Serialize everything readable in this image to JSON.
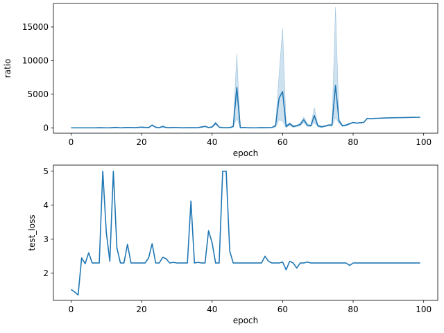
{
  "chart_data": [
    {
      "type": "line",
      "xlabel": "epoch",
      "ylabel": "ratio",
      "xlim": [
        -5,
        104
      ],
      "ylim": [
        -800,
        18500
      ],
      "xticks": [
        0,
        20,
        40,
        60,
        80,
        100
      ],
      "yticks": [
        0,
        5000,
        10000,
        15000
      ],
      "grid": false,
      "series": [
        {
          "color": "#1f77b4",
          "x": [
            0,
            1,
            2,
            3,
            4,
            5,
            6,
            7,
            8,
            9,
            10,
            11,
            12,
            13,
            14,
            15,
            16,
            17,
            18,
            19,
            20,
            21,
            22,
            23,
            24,
            25,
            26,
            27,
            28,
            29,
            30,
            31,
            32,
            33,
            34,
            35,
            36,
            37,
            38,
            39,
            40,
            41,
            42,
            43,
            44,
            45,
            46,
            47,
            48,
            49,
            50,
            51,
            52,
            53,
            54,
            55,
            56,
            57,
            58,
            59,
            60,
            61,
            62,
            63,
            64,
            65,
            66,
            67,
            68,
            69,
            70,
            71,
            72,
            73,
            74,
            75,
            76,
            77,
            78,
            79,
            80,
            81,
            82,
            83,
            84,
            85,
            86,
            87,
            88,
            89,
            90,
            91,
            92,
            93,
            94,
            95,
            96,
            97,
            98,
            99
          ],
          "y": [
            0,
            0,
            0,
            0,
            0,
            0,
            0,
            0,
            20,
            10,
            0,
            10,
            40,
            60,
            0,
            30,
            40,
            50,
            20,
            60,
            100,
            60,
            30,
            400,
            80,
            20,
            200,
            40,
            20,
            60,
            50,
            20,
            10,
            20,
            20,
            20,
            30,
            120,
            220,
            40,
            120,
            700,
            100,
            30,
            20,
            30,
            200,
            6000,
            30,
            50,
            20,
            10,
            0,
            10,
            30,
            20,
            30,
            50,
            300,
            4400,
            5400,
            200,
            600,
            200,
            300,
            500,
            1200,
            400,
            300,
            1800,
            300,
            150,
            250,
            400,
            400,
            6300,
            1000,
            300,
            400,
            600,
            800,
            700,
            750,
            800,
            1400,
            1350,
            1400,
            1420,
            1440,
            1460,
            1480,
            1490,
            1500,
            1510,
            1520,
            1530,
            1540,
            1550,
            1560,
            1570
          ],
          "upper": [
            0,
            0,
            0,
            0,
            0,
            0,
            0,
            0,
            30,
            20,
            0,
            20,
            80,
            100,
            0,
            50,
            60,
            80,
            40,
            100,
            150,
            100,
            50,
            500,
            150,
            40,
            300,
            80,
            40,
            100,
            80,
            40,
            20,
            40,
            40,
            40,
            50,
            200,
            300,
            80,
            200,
            900,
            150,
            60,
            40,
            60,
            300,
            11000,
            60,
            80,
            40,
            20,
            0,
            20,
            60,
            40,
            60,
            80,
            500,
            8000,
            14800,
            400,
            800,
            350,
            400,
            700,
            1600,
            600,
            400,
            3000,
            450,
            250,
            350,
            500,
            600,
            18000,
            1300,
            400,
            500,
            700,
            850,
            700,
            750,
            800,
            1400,
            1350,
            1400,
            1420,
            1440,
            1460,
            1480,
            1490,
            1500,
            1510,
            1520,
            1530,
            1540,
            1550,
            1560,
            1570
          ],
          "lower": [
            0,
            0,
            0,
            0,
            0,
            0,
            0,
            0,
            10,
            0,
            0,
            0,
            10,
            20,
            0,
            10,
            20,
            20,
            0,
            20,
            50,
            20,
            10,
            300,
            20,
            0,
            100,
            0,
            0,
            20,
            20,
            0,
            0,
            0,
            0,
            0,
            10,
            40,
            140,
            0,
            40,
            500,
            50,
            0,
            0,
            0,
            100,
            1500,
            0,
            20,
            0,
            0,
            0,
            0,
            0,
            0,
            0,
            20,
            100,
            1200,
            1000,
            0,
            400,
            50,
            200,
            300,
            800,
            200,
            200,
            800,
            150,
            50,
            150,
            300,
            200,
            1500,
            700,
            200,
            300,
            500,
            750,
            700,
            750,
            800,
            1400,
            1350,
            1400,
            1420,
            1440,
            1460,
            1480,
            1490,
            1500,
            1510,
            1520,
            1530,
            1540,
            1550,
            1560,
            1570
          ]
        }
      ]
    },
    {
      "type": "line",
      "xlabel": "epoch",
      "ylabel": "test_loss",
      "xlim": [
        -5,
        104
      ],
      "ylim": [
        1.2,
        5.18
      ],
      "xticks": [
        0,
        20,
        40,
        60,
        80,
        100
      ],
      "yticks": [
        2,
        3,
        4,
        5
      ],
      "grid": false,
      "series": [
        {
          "color": "#1f77b4",
          "x": [
            0,
            1,
            2,
            3,
            4,
            5,
            6,
            7,
            8,
            9,
            10,
            11,
            12,
            13,
            14,
            15,
            16,
            17,
            18,
            19,
            20,
            21,
            22,
            23,
            24,
            25,
            26,
            27,
            28,
            29,
            30,
            31,
            32,
            33,
            34,
            35,
            36,
            37,
            38,
            39,
            40,
            41,
            42,
            43,
            44,
            45,
            46,
            47,
            48,
            49,
            50,
            51,
            52,
            53,
            54,
            55,
            56,
            57,
            58,
            59,
            60,
            61,
            62,
            63,
            64,
            65,
            66,
            67,
            68,
            69,
            70,
            71,
            72,
            73,
            74,
            75,
            76,
            77,
            78,
            79,
            80,
            81,
            82,
            83,
            84,
            85,
            86,
            87,
            88,
            89,
            90,
            91,
            92,
            93,
            94,
            95,
            96,
            97,
            98,
            99
          ],
          "y": [
            1.52,
            1.45,
            1.36,
            2.45,
            2.28,
            2.6,
            2.3,
            2.3,
            2.3,
            5.0,
            3.2,
            2.35,
            5.0,
            2.75,
            2.3,
            2.3,
            2.85,
            2.3,
            2.3,
            2.3,
            2.3,
            2.3,
            2.45,
            2.87,
            2.3,
            2.3,
            2.47,
            2.42,
            2.3,
            2.32,
            2.3,
            2.3,
            2.3,
            2.3,
            4.12,
            2.3,
            2.32,
            2.3,
            2.3,
            3.25,
            2.9,
            2.3,
            2.3,
            5.0,
            5.0,
            2.65,
            2.3,
            2.3,
            2.3,
            2.3,
            2.3,
            2.3,
            2.3,
            2.3,
            2.3,
            2.5,
            2.35,
            2.3,
            2.3,
            2.3,
            2.33,
            2.1,
            2.35,
            2.3,
            2.15,
            2.3,
            2.3,
            2.33,
            2.3,
            2.3,
            2.3,
            2.3,
            2.3,
            2.3,
            2.3,
            2.3,
            2.3,
            2.3,
            2.3,
            2.23,
            2.3,
            2.3,
            2.3,
            2.3,
            2.3,
            2.3,
            2.3,
            2.3,
            2.3,
            2.3,
            2.3,
            2.3,
            2.3,
            2.3,
            2.3,
            2.3,
            2.3,
            2.3,
            2.3,
            2.3
          ]
        }
      ]
    }
  ]
}
